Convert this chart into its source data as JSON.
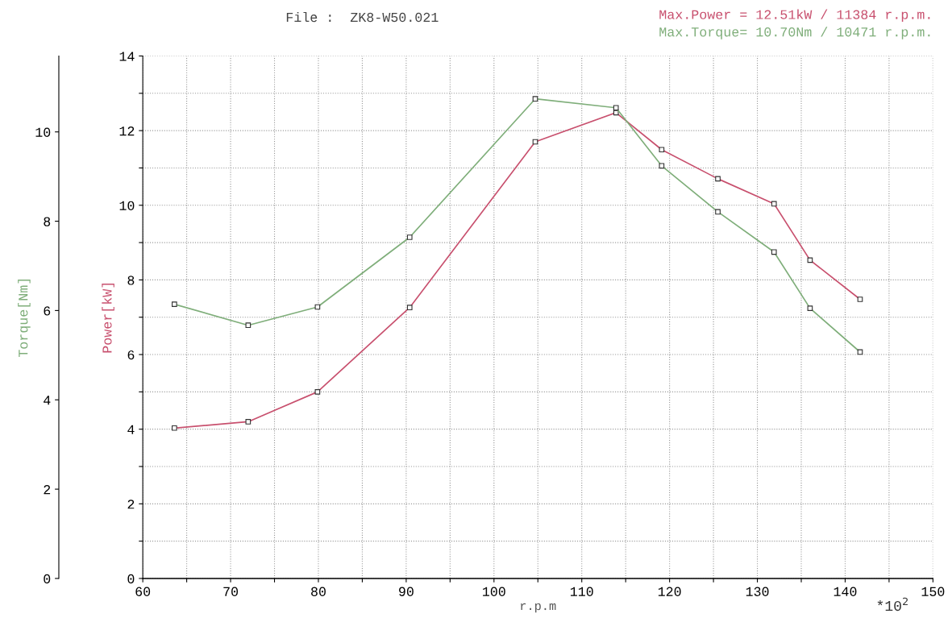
{
  "chart_data": {
    "type": "line",
    "title": "File :  ZK8-W50.021",
    "xlabel": "r.p.m",
    "ylabel": "Power[kW]",
    "y2label": "Torque[Nm]",
    "annotations": [
      "Max.Power = 12.51kW / 11384 r.p.m.",
      "Max.Torque= 10.70Nm / 10471 r.p.m.",
      "*10$^{2}$"
    ],
    "x": [
      63.6,
      72.0,
      79.9,
      90.4,
      104.7,
      113.9,
      119.1,
      125.5,
      131.9,
      136.0,
      141.7
    ],
    "series": [
      {
        "name": null,
        "color": "#c8506e",
        "values": [
          4.03,
          4.2,
          5.0,
          7.26,
          11.7,
          12.48,
          11.49,
          10.71,
          10.04,
          8.53,
          7.48
        ]
      },
      {
        "name": null,
        "color": "#7fae7a",
        "axis": "y2",
        "values": [
          6.14,
          5.67,
          6.08,
          7.64,
          10.74,
          10.54,
          9.24,
          8.21,
          7.31,
          6.05,
          5.07
        ]
      }
    ],
    "xlim": [
      60,
      150
    ],
    "xticks": [
      60,
      {
        "value": 65,
        "label": null
      },
      70,
      {
        "value": 75,
        "label": null
      },
      80,
      {
        "value": 85,
        "label": null
      },
      90,
      {
        "value": 95,
        "label": null
      },
      100,
      {
        "value": 105,
        "label": null
      },
      110,
      {
        "value": 115,
        "label": null
      },
      120,
      {
        "value": 125,
        "label": null
      },
      130,
      {
        "value": 135,
        "label": null
      },
      140,
      {
        "value": 145,
        "label": null
      },
      150
    ],
    "ylim": [
      0,
      14
    ],
    "yticks": [
      0,
      {
        "value": 1,
        "label": null
      },
      2,
      {
        "value": 3,
        "label": null
      },
      4,
      {
        "value": 5,
        "label": null
      },
      6,
      {
        "value": 7,
        "label": null
      },
      8,
      {
        "value": 9,
        "label": null
      },
      10,
      {
        "value": 11,
        "label": null
      },
      12,
      {
        "value": 13,
        "label": null
      },
      14
    ],
    "y2lim": [
      0,
      11.7
    ],
    "y2ticks": [
      0,
      2,
      4,
      6,
      8,
      10
    ],
    "grid": true,
    "marker": "square",
    "line_style": "solid"
  }
}
